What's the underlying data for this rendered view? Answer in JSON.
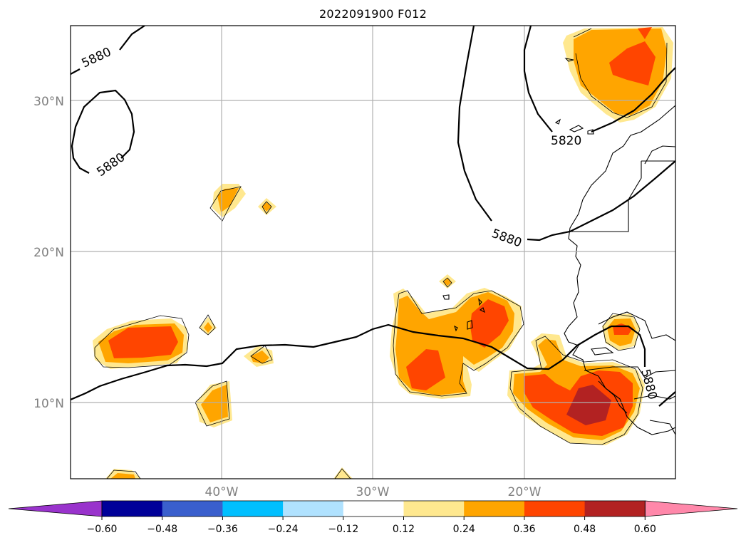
{
  "title": "2022091900 F012",
  "map": {
    "lat_labels": [
      {
        "text": "30°N",
        "lat": 30
      },
      {
        "text": "20°N",
        "lat": 20
      },
      {
        "text": "10°N",
        "lat": 10
      }
    ],
    "lon_labels": [
      {
        "text": "40°W",
        "lon": -40
      },
      {
        "text": "30°W",
        "lon": -30
      },
      {
        "text": "20°W",
        "lon": -20
      }
    ],
    "extent": {
      "lon_min": -50,
      "lon_max": -10,
      "lat_min": 5,
      "lat_max": 35
    },
    "gridlines": true,
    "contour_labels": [
      "5880",
      "5880",
      "5820",
      "5880",
      "5880"
    ]
  },
  "colorbar": {
    "ticks": [
      "−0.60",
      "−0.48",
      "−0.36",
      "−0.24",
      "−0.12",
      "0.12",
      "0.24",
      "0.36",
      "0.48",
      "0.60"
    ],
    "colors": [
      "#9933cc",
      "#000099",
      "#3a5fcd",
      "#00bfff",
      "#b0e2ff",
      "#ffffff",
      "#ffe88f",
      "#ffa500",
      "#ff4500",
      "#b22222",
      "#ff88aa"
    ],
    "extend": "both"
  }
}
